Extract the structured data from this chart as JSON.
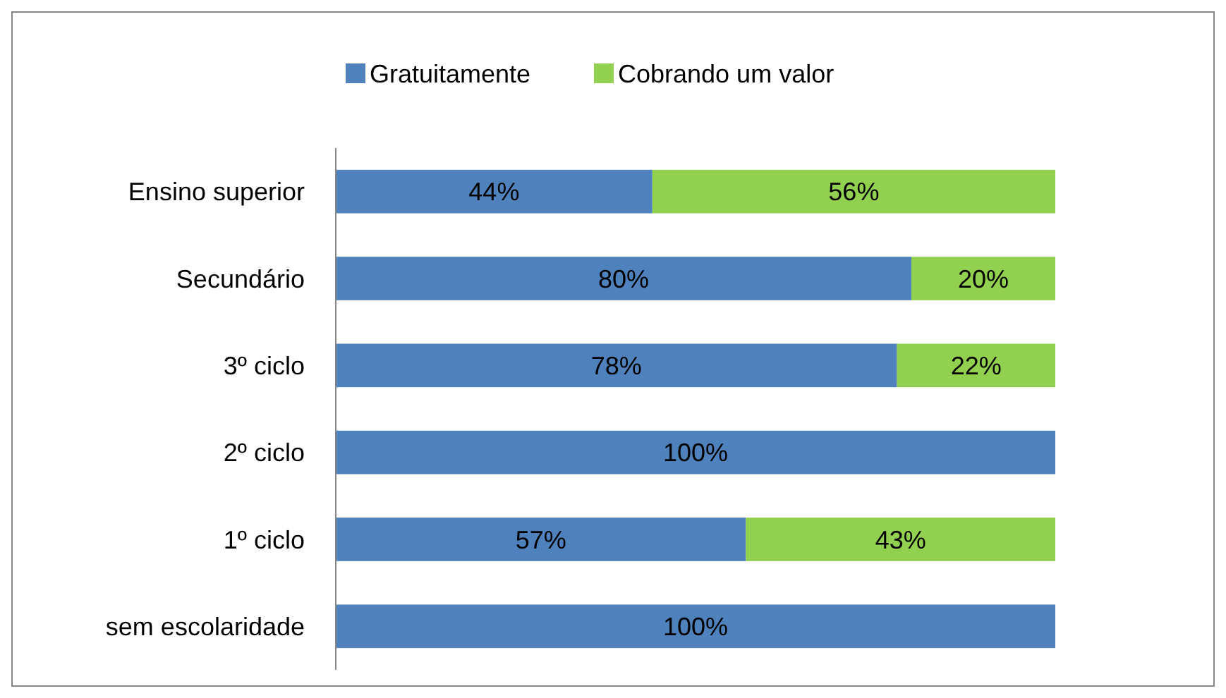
{
  "chart_data": {
    "type": "bar",
    "orientation": "horizontal",
    "stacked": true,
    "legend": "top",
    "xlim": [
      0,
      100
    ],
    "tick_labels": "y",
    "categories": [
      "Ensino superior",
      "Secundário",
      "3º ciclo",
      "2º ciclo",
      "1º ciclo",
      "sem escolaridade"
    ],
    "series": [
      {
        "name": "Gratuitamente",
        "color": "#4f81bd",
        "values": [
          44,
          80,
          78,
          100,
          57,
          100
        ],
        "value_labels": [
          "44%",
          "80%",
          "78%",
          "100%",
          "57%",
          "100%"
        ]
      },
      {
        "name": "Cobrando um valor",
        "color": "#92d050",
        "values": [
          56,
          20,
          22,
          0,
          43,
          0
        ],
        "value_labels": [
          "56%",
          "20%",
          "22%",
          null,
          "43%",
          null
        ]
      }
    ]
  }
}
